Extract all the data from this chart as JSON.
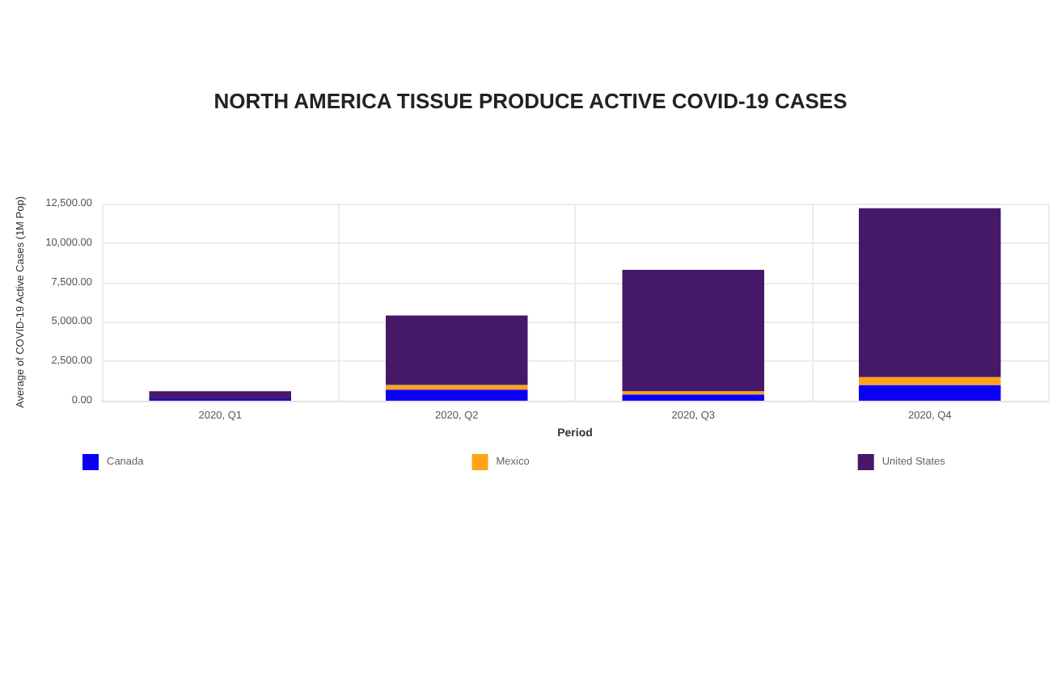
{
  "chart_data": {
    "type": "bar",
    "title": "NORTH AMERICA TISSUE PRODUCE ACTIVE COVID-19 CASES",
    "xlabel": "Period",
    "ylabel": "Average of COVID-19 Active Cases (1M Pop)",
    "categories": [
      "2020, Q1",
      "2020, Q2",
      "2020, Q3",
      "2020, Q4"
    ],
    "series": [
      {
        "name": "Canada",
        "color": "#0a00f5",
        "values": [
          100,
          700,
          400,
          1000
        ]
      },
      {
        "name": "Mexico",
        "color": "#ffa31a",
        "values": [
          null,
          300,
          200,
          500
        ]
      },
      {
        "name": "United States",
        "color": "#461868",
        "values": [
          500,
          4400,
          7700,
          10700
        ]
      }
    ],
    "stacked": true,
    "ylim": [
      0,
      12500
    ],
    "yticks": [
      {
        "value": 0,
        "label": "0.00"
      },
      {
        "value": 2500,
        "label": "2,500.00"
      },
      {
        "value": 5000,
        "label": "5,000.00"
      },
      {
        "value": 7500,
        "label": "7,500.00"
      },
      {
        "value": 10000,
        "label": "10,000.00"
      },
      {
        "value": 12500,
        "label": "12,500.00"
      }
    ],
    "grid": true,
    "legend": "bottom"
  }
}
